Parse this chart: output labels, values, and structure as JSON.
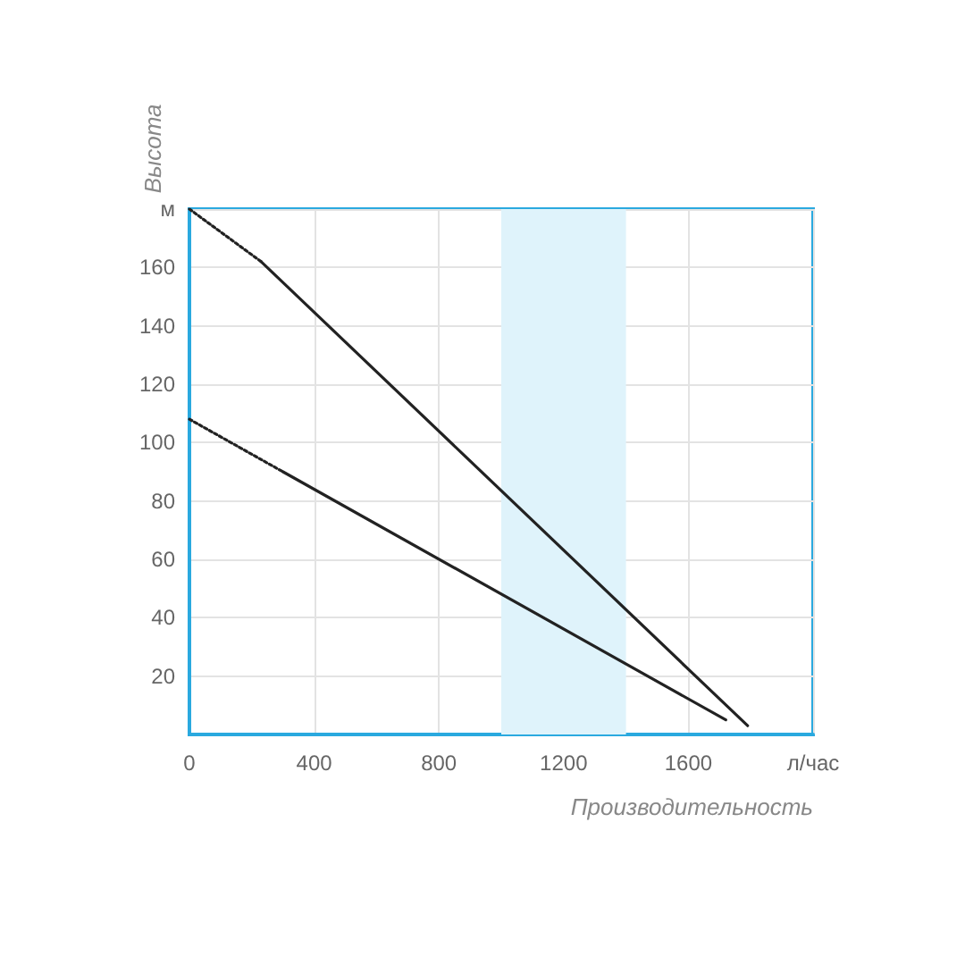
{
  "chart_data": {
    "type": "line",
    "xlabel": "Производительность",
    "ylabel": "Высота",
    "xlim": [
      0,
      2000
    ],
    "xticks": [
      0,
      400,
      800,
      1200,
      1600,
      {
        "value": 2000,
        "label": "л/час"
      }
    ],
    "ylim": [
      0,
      180
    ],
    "yticks": [
      {
        "value": 0,
        "label": null
      },
      20,
      40,
      60,
      80,
      100,
      120,
      140,
      160,
      {
        "value": 180,
        "label": "м"
      }
    ],
    "grid": true,
    "marker": "none",
    "bands": [
      {
        "axis": "x",
        "from": 1000,
        "to": 1400,
        "color": "#dff3fb"
      }
    ],
    "series": [
      {
        "color": "#222222",
        "line_style": "dotted",
        "x": [
          0,
          230
        ],
        "values": [
          180,
          162
        ]
      },
      {
        "color": "#222222",
        "line_style": "solid",
        "x": [
          230,
          1790
        ],
        "values": [
          162,
          3
        ]
      },
      {
        "color": "#222222",
        "line_style": "dotted",
        "x": [
          0,
          300
        ],
        "values": [
          108,
          90
        ]
      },
      {
        "color": "#222222",
        "line_style": "solid",
        "x": [
          300,
          1720
        ],
        "values": [
          90,
          5
        ]
      }
    ]
  }
}
